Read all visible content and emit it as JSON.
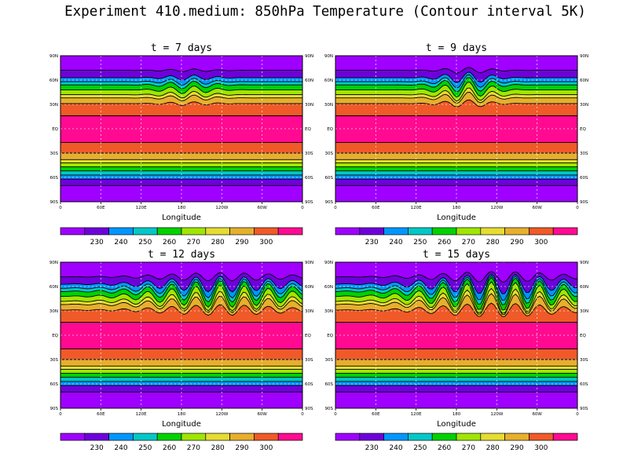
{
  "figure": {
    "title": "Experiment 410.medium: 850hPa Temperature (Contour interval 5K)"
  },
  "palette": [
    "#9f00ff",
    "#6e00dc",
    "#0096ff",
    "#00c8c8",
    "#00d200",
    "#a0e600",
    "#e6dc32",
    "#e6af2d",
    "#f05a28",
    "#ff0a91"
  ],
  "chart_data": [
    {
      "type": "heatmap",
      "title": "t = 7 days",
      "xlabel": "Longitude",
      "ylabel": "",
      "xticks": [
        "0",
        "60E",
        "120E",
        "180",
        "120W",
        "60W",
        "0"
      ],
      "yticks_left": [
        "90N",
        "60N",
        "30N",
        "EQ",
        "30S",
        "60S",
        "90S"
      ],
      "yticks_right": [
        "90N",
        "60N",
        "30N",
        "EQ",
        "30S",
        "60S",
        "90S"
      ],
      "xlim": [
        0,
        360
      ],
      "ylim": [
        -90,
        90
      ],
      "contour_interval_K": 5,
      "colorbar_levels": [
        "230",
        "240",
        "250",
        "260",
        "270",
        "280",
        "290",
        "300"
      ]
    },
    {
      "type": "heatmap",
      "title": "t = 9 days",
      "xlabel": "Longitude",
      "ylabel": "",
      "xticks": [
        "0",
        "60E",
        "120E",
        "180",
        "120W",
        "60W",
        "0"
      ],
      "yticks_left": [
        "90N",
        "60N",
        "30N",
        "EQ",
        "30S",
        "60S",
        "90S"
      ],
      "yticks_right": [
        "90N",
        "60N",
        "30N",
        "EQ",
        "30S",
        "60S",
        "90S"
      ],
      "xlim": [
        0,
        360
      ],
      "ylim": [
        -90,
        90
      ],
      "contour_interval_K": 5,
      "colorbar_levels": [
        "230",
        "240",
        "250",
        "260",
        "270",
        "280",
        "290",
        "300"
      ]
    },
    {
      "type": "heatmap",
      "title": "t = 12 days",
      "xlabel": "Longitude",
      "ylabel": "",
      "xticks": [
        "0",
        "60E",
        "120E",
        "180",
        "120W",
        "60W",
        "0"
      ],
      "yticks_left": [
        "90N",
        "60N",
        "30N",
        "EQ",
        "30S",
        "60S",
        "90S"
      ],
      "yticks_right": [
        "90N",
        "60N",
        "30N",
        "EQ",
        "30S",
        "60S",
        "90S"
      ],
      "xlim": [
        0,
        360
      ],
      "ylim": [
        -90,
        90
      ],
      "contour_interval_K": 5,
      "colorbar_levels": [
        "230",
        "240",
        "250",
        "260",
        "270",
        "280",
        "290",
        "300"
      ]
    },
    {
      "type": "heatmap",
      "title": "t = 15 days",
      "xlabel": "Longitude",
      "ylabel": "",
      "xticks": [
        "0",
        "60E",
        "120E",
        "180",
        "120W",
        "60W",
        "0"
      ],
      "yticks_left": [
        "90N",
        "60N",
        "30N",
        "EQ",
        "30S",
        "60S",
        "90S"
      ],
      "yticks_right": [
        "90N",
        "60N",
        "30N",
        "EQ",
        "30S",
        "60S",
        "90S"
      ],
      "xlim": [
        0,
        360
      ],
      "ylim": [
        -90,
        90
      ],
      "contour_interval_K": 5,
      "colorbar_levels": [
        "230",
        "240",
        "250",
        "260",
        "270",
        "280",
        "290",
        "300"
      ]
    }
  ]
}
